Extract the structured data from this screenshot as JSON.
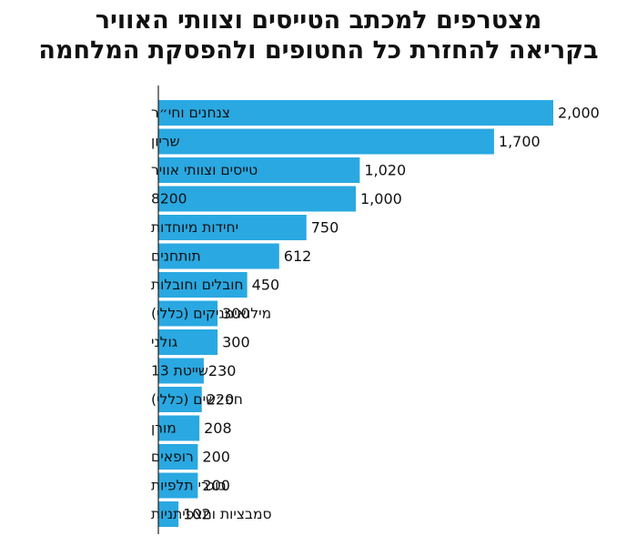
{
  "title": {
    "line1": "מצטרפים למכתב הטייסים וצוותי האוויר",
    "line2": "בקריאה להחזרת כל החטופים ולהפסקת המלחמה"
  },
  "colors": {
    "bar": "#2aa8e1",
    "axis": "#222222",
    "text": "#111111"
  },
  "chart_data": {
    "type": "bar",
    "orientation": "horizontal",
    "title": "מצטרפים למכתב הטייסים וצוותי האוויר בקריאה להחזרת כל החטופים ולהפסקת המלחמה",
    "categories": [
      "צנחנים וחי״ר",
      "שריון",
      "טייסים וצוותי אוויר",
      "8200",
      "יחידות מיוחדות",
      "תותחנים",
      "חובלים וחובלות",
      "מילואימניקים (כללי)",
      "גולני",
      "שייטת 13",
      "חפ״שים (כללי)",
      "מורן",
      "רופאים",
      "בוגרי תלפיות",
      "סמבציות ותצפיתניות"
    ],
    "values": [
      2000,
      1700,
      1020,
      1000,
      750,
      612,
      450,
      300,
      300,
      230,
      220,
      208,
      200,
      200,
      102
    ],
    "value_labels": [
      "2,000",
      "1,700",
      "1,020",
      "1,000",
      "750",
      "612",
      "450",
      "300",
      "300",
      "230",
      "220",
      "208",
      "200",
      "200",
      "102"
    ],
    "xlim": [
      0,
      2000
    ],
    "grid": false,
    "legend": "none"
  }
}
